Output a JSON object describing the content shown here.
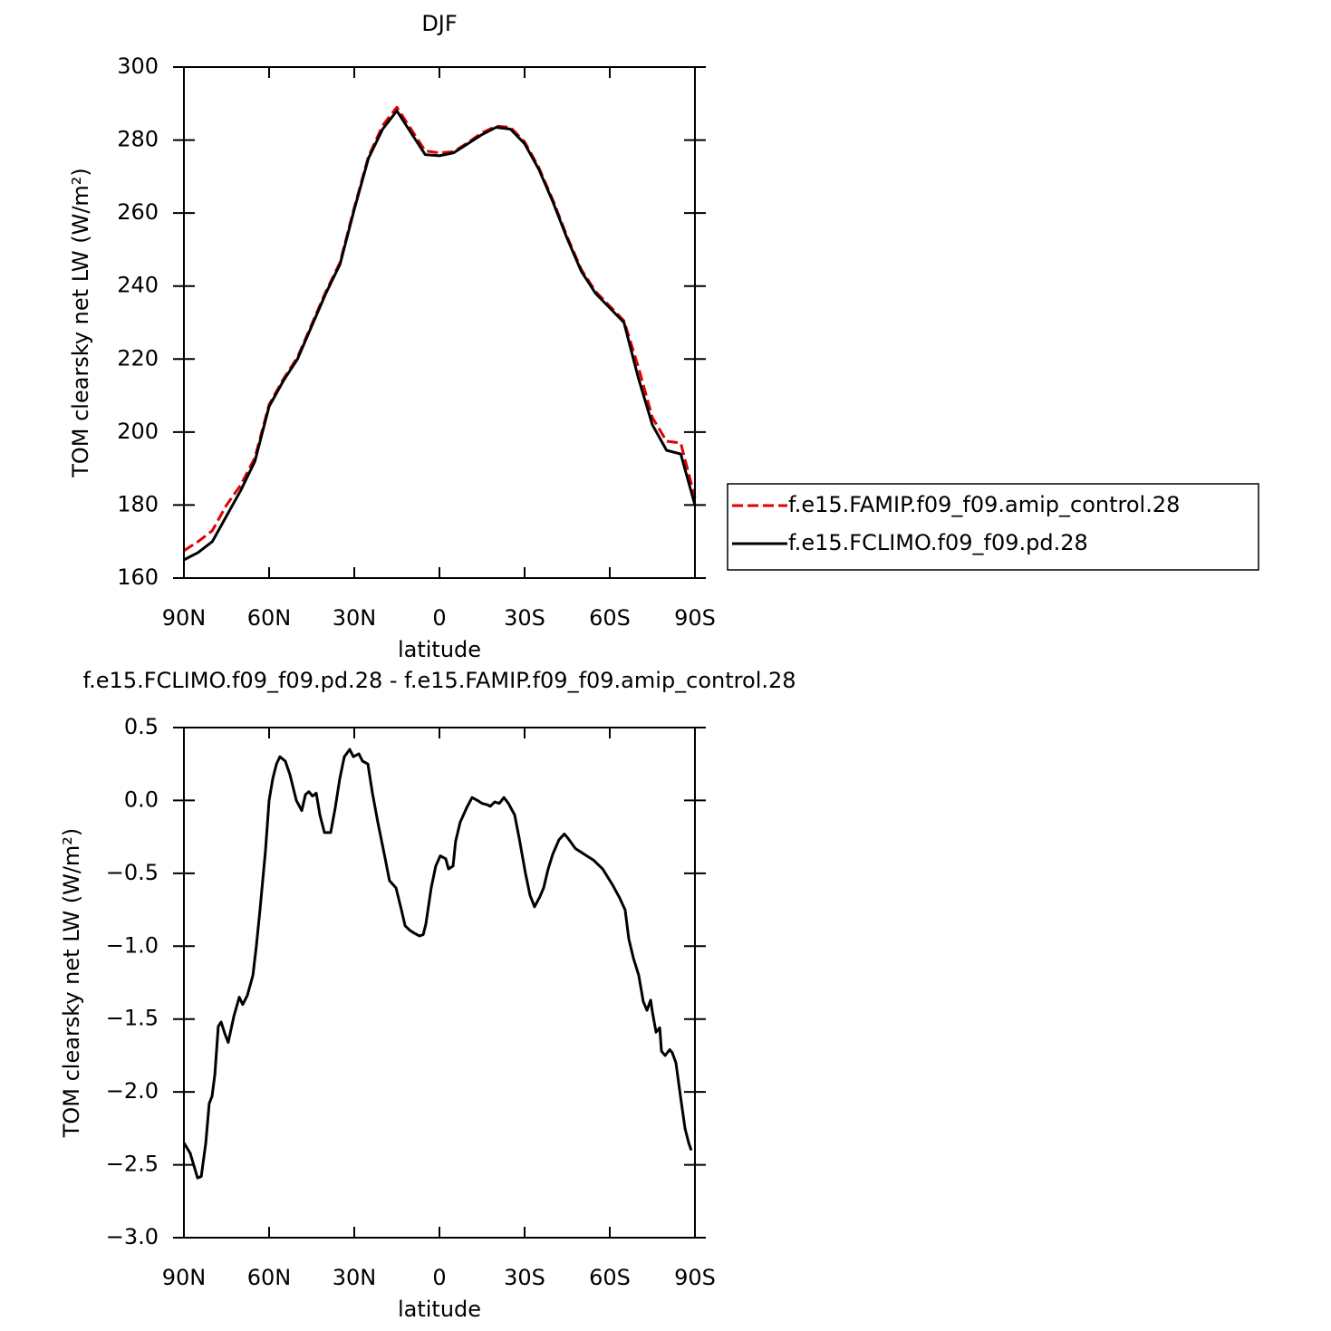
{
  "chart_data": [
    {
      "type": "line",
      "title": "DJF",
      "xlabel": "latitude",
      "ylabel": "TOM clearsky net LW (W/m²)",
      "x": [
        90,
        85,
        80,
        75,
        70,
        65,
        60,
        55,
        50,
        45,
        40,
        35,
        30,
        25,
        20,
        15,
        10,
        5,
        0,
        -5,
        -10,
        -15,
        -20,
        -25,
        -30,
        -35,
        -40,
        -45,
        -50,
        -55,
        -60,
        -65,
        -70,
        -75,
        -80,
        -85,
        -90
      ],
      "xlim": [
        90,
        -90
      ],
      "xticks": [
        {
          "value": 90,
          "label": "90N"
        },
        {
          "value": 60,
          "label": "60N"
        },
        {
          "value": 30,
          "label": "30N"
        },
        0,
        {
          "value": -30,
          "label": "30S"
        },
        {
          "value": -60,
          "label": "60S"
        },
        {
          "value": -90,
          "label": "90S"
        }
      ],
      "ylim": [
        160,
        300
      ],
      "yticks": [
        160,
        180,
        200,
        220,
        240,
        260,
        280,
        300
      ],
      "legend": "outside right",
      "series": [
        {
          "name": "f.e15.FAMIP.f09_f09.amip_control.28",
          "color": "#e00000",
          "line_style": "dashed",
          "values": [
            167.5,
            170,
            173,
            180,
            185.5,
            193,
            207.5,
            214.5,
            220.5,
            229.5,
            238.5,
            246.5,
            261.5,
            275.5,
            284,
            289,
            283,
            277,
            276.5,
            276.8,
            279.3,
            282,
            283.8,
            283.5,
            279.5,
            272.5,
            263.5,
            253.5,
            244.5,
            238.5,
            234.5,
            230.5,
            218,
            204,
            197.5,
            197,
            182
          ]
        },
        {
          "name": "f.e15.FCLIMO.f09_f09.pd.28",
          "color": "#000000",
          "line_style": "solid",
          "values": [
            165,
            167,
            170,
            177,
            184,
            192,
            207,
            214,
            220,
            229,
            238,
            246,
            261,
            275,
            283,
            288,
            282,
            276,
            275.7,
            276.5,
            279,
            281.5,
            283.5,
            283,
            279,
            272,
            263,
            253,
            244,
            238,
            234,
            230,
            215,
            202,
            195,
            194,
            180
          ]
        }
      ]
    },
    {
      "type": "line",
      "title": "f.e15.FCLIMO.f09_f09.pd.28 - f.e15.FAMIP.f09_f09.amip_control.28",
      "xlabel": "latitude",
      "ylabel": "TOM clearsky net LW (W/m²)",
      "x": [
        90,
        87.8,
        85.2,
        83.9,
        82.3,
        81.1,
        80.1,
        79.1,
        77.9,
        76.9,
        75.6,
        74.4,
        72.4,
        70.5,
        69.3,
        67.7,
        65.7,
        64.5,
        63.2,
        61.3,
        60,
        58.7,
        57.4,
        56.2,
        54.3,
        52.7,
        50.4,
        48.5,
        47.2,
        46,
        44.7,
        43.4,
        42.1,
        40.5,
        38.3,
        36.7,
        35.1,
        33.5,
        31.6,
        30.3,
        28.4,
        27.1,
        25.2,
        23.6,
        21.7,
        19.1,
        17.6,
        15.3,
        13.4,
        12.1,
        10.5,
        8.9,
        7.0,
        5.7,
        4.8,
        2.9,
        1.3,
        -0.3,
        -2.2,
        -3.2,
        -4.8,
        -5.7,
        -7.3,
        -9.6,
        -11.5,
        -13.4,
        -15,
        -16.9,
        -17.9,
        -19.5,
        -21.1,
        -22.7,
        -24.3,
        -26.5,
        -28.1,
        -30.3,
        -31.9,
        -33.5,
        -35.4,
        -36.7,
        -38.3,
        -39.9,
        -42.1,
        -44.0,
        -45.3,
        -47.9,
        -51.1,
        -54.3,
        -57.5,
        -61.0,
        -63.5,
        -65.4,
        -66.7,
        -68.3,
        -70.2,
        -71.8,
        -73.1,
        -74.4,
        -75,
        -76.3,
        -77.6,
        -78.2,
        -79.5,
        -81.1,
        -82,
        -83.3,
        -84.9,
        -86.5,
        -87.8,
        -88.7
      ],
      "xlim": [
        90,
        -90
      ],
      "xticks": [
        {
          "value": 90,
          "label": "90N"
        },
        {
          "value": 60,
          "label": "60N"
        },
        {
          "value": 30,
          "label": "30N"
        },
        0,
        {
          "value": -30,
          "label": "30S"
        },
        {
          "value": -60,
          "label": "60S"
        },
        {
          "value": -90,
          "label": "90S"
        }
      ],
      "ylim": [
        -3,
        0.5
      ],
      "yticks": [
        {
          "value": -3,
          "label": "−3.0"
        },
        {
          "value": -2.5,
          "label": "−2.5"
        },
        {
          "value": -2,
          "label": "−2.0"
        },
        {
          "value": -1.5,
          "label": "−1.5"
        },
        {
          "value": -1,
          "label": "−1.0"
        },
        {
          "value": -0.5,
          "label": "−0.5"
        },
        {
          "value": 0,
          "label": "0.0"
        },
        0.5
      ],
      "series": [
        {
          "color": "#000000",
          "line_style": "solid",
          "values": [
            -2.35,
            -2.42,
            -2.59,
            -2.58,
            -2.35,
            -2.08,
            -2.03,
            -1.88,
            -1.55,
            -1.52,
            -1.6,
            -1.66,
            -1.48,
            -1.35,
            -1.4,
            -1.34,
            -1.2,
            -1.0,
            -0.75,
            -0.35,
            0.0,
            0.15,
            0.25,
            0.3,
            0.27,
            0.18,
            0.0,
            -0.07,
            0.04,
            0.06,
            0.03,
            0.05,
            -0.1,
            -0.22,
            -0.22,
            -0.05,
            0.15,
            0.3,
            0.35,
            0.3,
            0.32,
            0.27,
            0.25,
            0.05,
            -0.15,
            -0.4,
            -0.55,
            -0.6,
            -0.75,
            -0.86,
            -0.89,
            -0.91,
            -0.93,
            -0.92,
            -0.85,
            -0.6,
            -0.45,
            -0.38,
            -0.4,
            -0.47,
            -0.45,
            -0.28,
            -0.15,
            -0.05,
            0.02,
            0.0,
            -0.02,
            -0.03,
            -0.04,
            -0.01,
            -0.02,
            0.02,
            -0.02,
            -0.1,
            -0.26,
            -0.5,
            -0.65,
            -0.73,
            -0.66,
            -0.6,
            -0.47,
            -0.37,
            -0.27,
            -0.23,
            -0.26,
            -0.33,
            -0.37,
            -0.41,
            -0.47,
            -0.58,
            -0.67,
            -0.75,
            -0.95,
            -1.08,
            -1.2,
            -1.38,
            -1.44,
            -1.37,
            -1.45,
            -1.59,
            -1.56,
            -1.72,
            -1.75,
            -1.71,
            -1.73,
            -1.8,
            -2.03,
            -2.25,
            -2.35,
            -2.4
          ]
        }
      ]
    }
  ]
}
